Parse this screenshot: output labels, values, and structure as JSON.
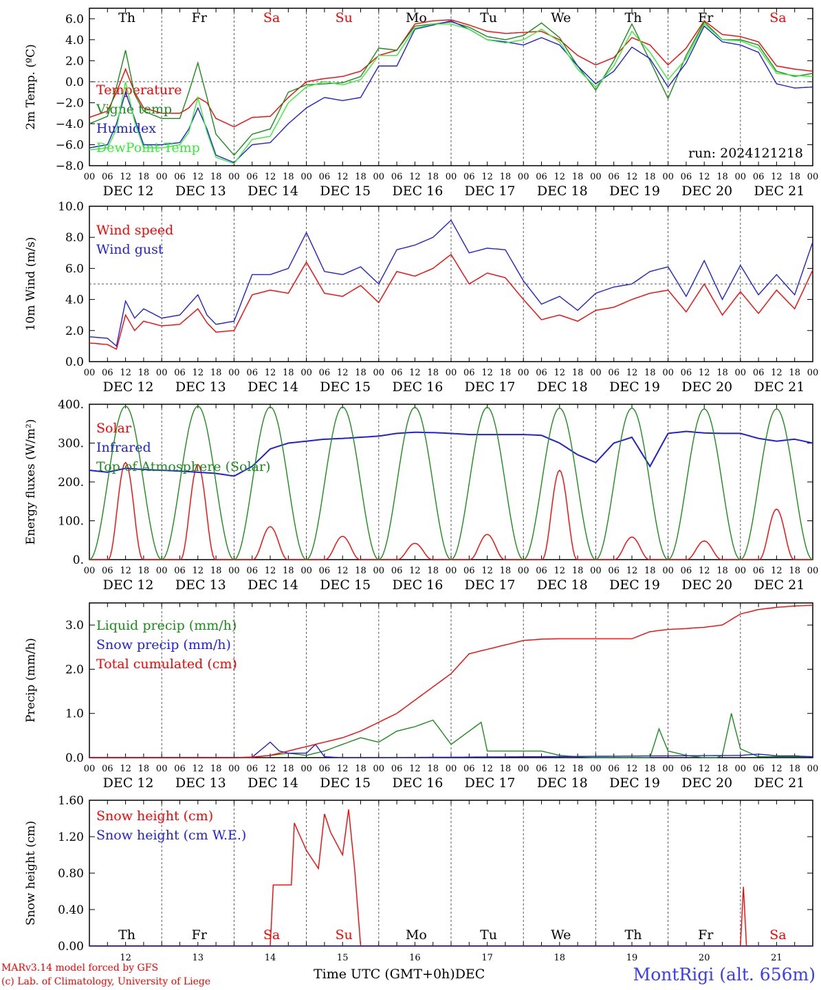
{
  "dates": [
    "DEC 12",
    "DEC 13",
    "DEC 14",
    "DEC 15",
    "DEC 16",
    "DEC 17",
    "DEC 18",
    "DEC 19",
    "DEC 20",
    "DEC 21"
  ],
  "weekdays": [
    "Th",
    "Fr",
    "Sa",
    "Su",
    "Mo",
    "Tu",
    "We",
    "Th",
    "Fr",
    "Sa"
  ],
  "weekend_flags": [
    false,
    false,
    true,
    true,
    false,
    false,
    false,
    false,
    false,
    true
  ],
  "day_numbers": [
    "12",
    "13",
    "14",
    "15",
    "16",
    "17",
    "18",
    "19",
    "20",
    "21"
  ],
  "hour_ticks": [
    "00",
    "06",
    "12",
    "18"
  ],
  "colors": {
    "red": "#ff0000",
    "green": "#1a8c1a",
    "blue": "#1f1fe0",
    "lightgreen": "#33ee33",
    "axis": "#000000",
    "grid": "#555555"
  },
  "footer": {
    "credit_line1": "MARv3.14 model forced by GFS",
    "credit_line2": "(c) Lab. of Climatology, University of Liege",
    "station": "MontRigi (alt. 656m)",
    "xaxis_title": "Time UTC (GMT+0h)",
    "xaxis_month": "DEC"
  },
  "chart_data": [
    {
      "type": "line",
      "ylabel": "2m Temp. (ºC)",
      "ylim": [
        -8,
        7
      ],
      "yticks": [
        6,
        4,
        2,
        0,
        -2,
        -4,
        -6,
        -8
      ],
      "ytick_labels": [
        "6.0",
        "4.0",
        "2.0",
        "0.0",
        "−2.0",
        "−4.0",
        "−6.0",
        "−8.0"
      ],
      "hline": 0,
      "annotation": "run: 2024121218",
      "x_hours": [
        0,
        6,
        9,
        12,
        15,
        18,
        24,
        30,
        33,
        36,
        39,
        42,
        48,
        54,
        60,
        66,
        72,
        78,
        84,
        90,
        96,
        102,
        108,
        114,
        120,
        126,
        132,
        138,
        144,
        150,
        156,
        162,
        168,
        174,
        180,
        186,
        192,
        198,
        204,
        210,
        216,
        222,
        228,
        234,
        240
      ],
      "series": [
        {
          "name": "Temperature",
          "color": "#ff0000",
          "values": [
            -3.4,
            -2.8,
            -1.0,
            1.2,
            -1.0,
            -2.5,
            -3.0,
            -3.0,
            -2.5,
            -1.5,
            -2.0,
            -3.5,
            -4.3,
            -3.4,
            -3.3,
            -1.5,
            0.0,
            0.3,
            0.5,
            1.0,
            2.5,
            3.0,
            5.5,
            5.8,
            5.9,
            5.4,
            4.8,
            4.6,
            4.7,
            4.8,
            4.0,
            2.5,
            1.6,
            2.3,
            4.2,
            3.5,
            1.6,
            3.2,
            5.8,
            4.5,
            4.3,
            3.8,
            1.5,
            1.2,
            1.0
          ]
        },
        {
          "name": "Vigne temp",
          "color": "#1a8c1a",
          "values": [
            -4.0,
            -3.3,
            -0.5,
            3.0,
            -1.2,
            -2.8,
            -3.5,
            -3.5,
            -1.0,
            1.8,
            -1.5,
            -5.0,
            -7.0,
            -5.0,
            -4.5,
            -1.0,
            -0.3,
            -0.2,
            -0.1,
            0.5,
            3.2,
            3.0,
            5.3,
            5.5,
            5.7,
            5.2,
            4.3,
            4.0,
            4.4,
            5.6,
            4.2,
            1.5,
            -0.8,
            2.0,
            5.5,
            2.0,
            -1.6,
            2.5,
            5.7,
            4.0,
            4.0,
            3.5,
            1.0,
            0.5,
            0.8
          ]
        },
        {
          "name": "Humidex",
          "color": "#1f1fe0",
          "values": [
            -6.3,
            -6.0,
            -4.0,
            -1.0,
            -3.5,
            -6.0,
            -6.0,
            -5.8,
            -4.5,
            -2.5,
            -4.5,
            -7.0,
            -7.7,
            -6.0,
            -5.8,
            -4.0,
            -2.5,
            -1.5,
            -1.8,
            -1.5,
            1.5,
            1.5,
            5.0,
            5.4,
            5.8,
            5.0,
            4.0,
            3.8,
            3.5,
            4.2,
            3.5,
            1.5,
            -0.2,
            1.0,
            3.3,
            2.2,
            -0.5,
            1.8,
            5.3,
            3.8,
            3.5,
            2.8,
            -0.2,
            -0.6,
            -0.5
          ]
        },
        {
          "name": "DewPoint Temp",
          "color": "#33ee33",
          "values": [
            -6.5,
            -6.3,
            -4.5,
            0.0,
            -3.8,
            -6.3,
            -6.3,
            -6.0,
            -4.8,
            -1.5,
            -4.8,
            -7.2,
            -7.8,
            -5.5,
            -5.2,
            -2.0,
            -0.5,
            0.0,
            -0.3,
            0.2,
            2.5,
            2.5,
            5.1,
            5.5,
            5.5,
            5.0,
            4.0,
            3.7,
            4.0,
            5.0,
            3.8,
            1.2,
            -0.5,
            1.5,
            4.8,
            2.8,
            0.2,
            2.2,
            5.5,
            4.0,
            3.9,
            3.2,
            0.8,
            0.6,
            0.5
          ]
        }
      ]
    },
    {
      "type": "line",
      "ylabel": "10m Wind (m/s)",
      "ylim": [
        0,
        10
      ],
      "yticks": [
        10,
        8,
        6,
        4,
        2,
        0
      ],
      "ytick_labels": [
        "10.0",
        "8.0",
        "6.0",
        "4.0",
        "2.0",
        "0.0"
      ],
      "hline": 5,
      "x_hours": [
        0,
        6,
        9,
        12,
        15,
        18,
        24,
        30,
        36,
        39,
        42,
        48,
        54,
        60,
        66,
        72,
        78,
        84,
        90,
        96,
        102,
        108,
        114,
        120,
        126,
        132,
        138,
        144,
        150,
        156,
        162,
        168,
        174,
        180,
        186,
        192,
        198,
        204,
        210,
        216,
        222,
        228,
        234,
        240
      ],
      "series": [
        {
          "name": "Wind speed",
          "color": "#ff0000",
          "values": [
            1.2,
            1.1,
            0.8,
            3.0,
            2.0,
            2.6,
            2.3,
            2.4,
            3.4,
            2.5,
            1.9,
            2.0,
            4.3,
            4.6,
            4.4,
            6.4,
            4.4,
            4.2,
            4.9,
            3.8,
            5.8,
            5.5,
            6.0,
            6.9,
            5.0,
            5.7,
            5.4,
            4.0,
            2.7,
            3.0,
            2.6,
            3.3,
            3.5,
            4.0,
            4.4,
            4.6,
            3.2,
            5.0,
            3.0,
            4.5,
            3.1,
            4.6,
            3.4,
            5.9
          ]
        },
        {
          "name": "Wind gust",
          "color": "#1f1fe0",
          "values": [
            1.6,
            1.5,
            1.0,
            3.9,
            2.8,
            3.4,
            2.8,
            3.0,
            4.3,
            3.0,
            2.4,
            2.6,
            5.6,
            5.6,
            6.0,
            8.3,
            5.8,
            5.6,
            6.1,
            5.0,
            7.2,
            7.5,
            8.0,
            9.1,
            7.0,
            7.3,
            7.2,
            5.2,
            3.7,
            4.2,
            3.3,
            4.4,
            4.8,
            5.0,
            5.8,
            6.1,
            4.2,
            6.5,
            4.0,
            6.2,
            4.3,
            5.6,
            4.3,
            7.7
          ]
        }
      ]
    },
    {
      "type": "line",
      "ylabel": "Energy fluxes (W/m²)",
      "ylim": [
        0,
        400
      ],
      "yticks": [
        400,
        300,
        200,
        100,
        0
      ],
      "ytick_labels": [
        "400.",
        "300.",
        "200.",
        "100.",
        "0."
      ],
      "series": [
        {
          "name": "Solar",
          "color": "#ff0000",
          "peaks": [
            250,
            245,
            85,
            60,
            42,
            65,
            230,
            58,
            48,
            130
          ]
        },
        {
          "name": "Infrared",
          "color": "#1f1fe0",
          "x_hours": [
            0,
            6,
            12,
            18,
            24,
            30,
            36,
            42,
            48,
            54,
            60,
            66,
            72,
            78,
            84,
            90,
            96,
            102,
            108,
            114,
            120,
            126,
            132,
            138,
            144,
            150,
            156,
            162,
            168,
            174,
            180,
            186,
            192,
            198,
            204,
            210,
            216,
            222,
            228,
            234,
            240
          ],
          "values": [
            230,
            225,
            235,
            232,
            230,
            228,
            225,
            222,
            215,
            240,
            285,
            300,
            305,
            310,
            312,
            315,
            318,
            325,
            328,
            327,
            325,
            322,
            322,
            322,
            322,
            320,
            300,
            270,
            250,
            300,
            315,
            240,
            325,
            330,
            326,
            325,
            325,
            312,
            305,
            310,
            300
          ]
        },
        {
          "name": "Top of Atmosphere (Solar)",
          "color": "#1a8c1a",
          "peaks": [
            395,
            395,
            393,
            393,
            392,
            392,
            390,
            390,
            388,
            388
          ]
        }
      ]
    },
    {
      "type": "line",
      "ylabel": "Precip (mm/h)",
      "ylim": [
        0,
        3.5
      ],
      "yticks": [
        3.0,
        2.0,
        1.0,
        0.0
      ],
      "ytick_labels": [
        "3.0",
        "2.0",
        "1.0",
        "0.0"
      ],
      "series": [
        {
          "name": "Liquid precip (mm/h)",
          "color": "#1a8c1a",
          "x_hours": [
            0,
            48,
            54,
            60,
            66,
            72,
            78,
            84,
            90,
            96,
            102,
            108,
            114,
            120,
            126,
            130,
            132,
            138,
            144,
            150,
            156,
            162,
            168,
            174,
            180,
            186,
            189,
            192,
            198,
            204,
            208,
            210,
            213,
            216,
            222,
            228,
            234,
            240
          ],
          "values": [
            0,
            0,
            0.01,
            0.05,
            0.1,
            0.05,
            0.15,
            0.3,
            0.45,
            0.35,
            0.6,
            0.7,
            0.85,
            0.3,
            0.6,
            0.8,
            0.15,
            0.15,
            0.15,
            0.15,
            0.05,
            0.02,
            0,
            0,
            0,
            0,
            0.65,
            0.15,
            0.05,
            0,
            0,
            0.05,
            1.0,
            0.2,
            0.02,
            0.02,
            0.02,
            0.02
          ]
        },
        {
          "name": "Snow precip (mm/h)",
          "color": "#1f1fe0",
          "x_hours": [
            0,
            48,
            54,
            60,
            63,
            66,
            72,
            75,
            78,
            84,
            90,
            96,
            216,
            222,
            228,
            234,
            240
          ],
          "values": [
            0,
            0,
            0.01,
            0.35,
            0.15,
            0.1,
            0.1,
            0.3,
            0.02,
            0,
            0,
            0,
            0.05,
            0.08,
            0.04,
            0.04,
            0.02
          ]
        },
        {
          "name": "Total cumulated (cm)",
          "color": "#ff0000",
          "x_hours": [
            0,
            48,
            54,
            60,
            66,
            72,
            78,
            84,
            90,
            96,
            102,
            108,
            114,
            120,
            126,
            132,
            138,
            144,
            150,
            156,
            162,
            168,
            174,
            180,
            186,
            192,
            198,
            204,
            210,
            216,
            222,
            228,
            234,
            240
          ],
          "values": [
            0,
            0,
            0.01,
            0.05,
            0.15,
            0.25,
            0.35,
            0.45,
            0.6,
            0.8,
            1.0,
            1.3,
            1.6,
            1.9,
            2.35,
            2.45,
            2.55,
            2.65,
            2.68,
            2.69,
            2.69,
            2.69,
            2.69,
            2.69,
            2.85,
            2.9,
            2.92,
            2.95,
            3.0,
            3.25,
            3.35,
            3.4,
            3.43,
            3.45
          ]
        }
      ]
    },
    {
      "type": "line",
      "ylabel": "Snow height (cm)",
      "ylim": [
        0,
        1.6
      ],
      "yticks": [
        1.6,
        1.2,
        0.8,
        0.4,
        0.0
      ],
      "ytick_labels": [
        "1.60",
        "1.20",
        "0.80",
        "0.40",
        "0.00"
      ],
      "series": [
        {
          "name": "Snow height (cm)",
          "color": "#ff0000",
          "x_hours": [
            0,
            60,
            61,
            63,
            67,
            68,
            72,
            76,
            78,
            80,
            84,
            86,
            88,
            90,
            92,
            216,
            217,
            218,
            219,
            240
          ],
          "values": [
            0,
            0,
            0.67,
            0.67,
            0.67,
            1.35,
            1.05,
            0.85,
            1.45,
            1.25,
            1.0,
            1.5,
            0.85,
            0,
            0,
            0,
            0.65,
            0,
            0,
            0
          ]
        },
        {
          "name": "Snow height (cm W.E.)",
          "color": "#1f1fe0",
          "x_hours": [
            0,
            240
          ],
          "values": [
            0,
            0
          ]
        }
      ]
    }
  ]
}
